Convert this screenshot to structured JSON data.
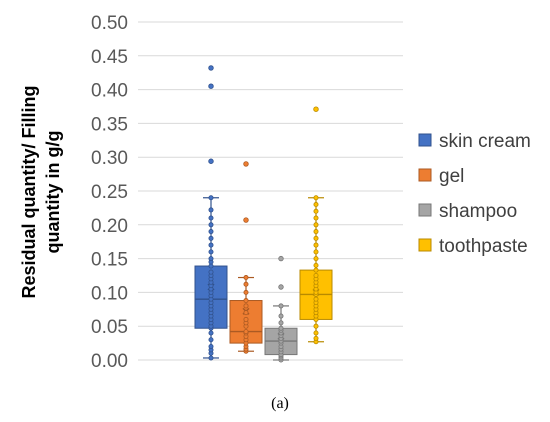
{
  "chart_data": {
    "type": "boxplot",
    "ylabel_lines": [
      "Residual quantity/ Filling",
      "quantity in g/g"
    ],
    "ylim": [
      0,
      0.5
    ],
    "yticks": [
      0.0,
      0.05,
      0.1,
      0.15,
      0.2,
      0.25,
      0.3,
      0.35,
      0.4,
      0.45,
      0.5
    ],
    "ytick_labels": [
      "0.00",
      "0.05",
      "0.10",
      "0.15",
      "0.20",
      "0.25",
      "0.30",
      "0.35",
      "0.40",
      "0.45",
      "0.50"
    ],
    "grid": true,
    "legend_position": "right",
    "caption": "(a)",
    "series": [
      {
        "name": "skin cream",
        "color": "#4472C4",
        "min": 0.003,
        "q1": 0.047,
        "median": 0.09,
        "q3": 0.139,
        "max": 0.24,
        "mean": 0.108,
        "points": [
          0.003,
          0.01,
          0.015,
          0.02,
          0.03,
          0.04,
          0.047,
          0.05,
          0.055,
          0.06,
          0.065,
          0.07,
          0.075,
          0.08,
          0.085,
          0.09,
          0.095,
          0.1,
          0.105,
          0.11,
          0.115,
          0.12,
          0.125,
          0.13,
          0.139,
          0.145,
          0.15,
          0.16,
          0.17,
          0.18,
          0.19,
          0.2,
          0.21,
          0.222,
          0.24
        ],
        "outliers": [
          0.294,
          0.405,
          0.432
        ]
      },
      {
        "name": "gel",
        "color": "#ED7D31",
        "min": 0.013,
        "q1": 0.025,
        "median": 0.042,
        "q3": 0.088,
        "max": 0.122,
        "mean": 0.072,
        "points": [
          0.013,
          0.016,
          0.02,
          0.025,
          0.03,
          0.035,
          0.04,
          0.042,
          0.05,
          0.055,
          0.06,
          0.07,
          0.08,
          0.088,
          0.1,
          0.112,
          0.122
        ],
        "outliers": [
          0.207,
          0.29
        ]
      },
      {
        "name": "shampoo",
        "color": "#A5A5A5",
        "min": 0.0,
        "q1": 0.008,
        "median": 0.028,
        "q3": 0.047,
        "max": 0.08,
        "mean": 0.035,
        "points": [
          0.0,
          0.003,
          0.006,
          0.008,
          0.012,
          0.016,
          0.02,
          0.025,
          0.028,
          0.032,
          0.036,
          0.04,
          0.044,
          0.047,
          0.055,
          0.065,
          0.08
        ],
        "outliers": [
          0.108,
          0.15
        ]
      },
      {
        "name": "toothpaste",
        "color": "#FFC000",
        "min": 0.027,
        "q1": 0.06,
        "median": 0.097,
        "q3": 0.133,
        "max": 0.24,
        "mean": 0.1,
        "points": [
          0.027,
          0.032,
          0.04,
          0.05,
          0.06,
          0.065,
          0.07,
          0.075,
          0.08,
          0.085,
          0.09,
          0.097,
          0.1,
          0.105,
          0.11,
          0.115,
          0.12,
          0.125,
          0.133,
          0.14,
          0.15,
          0.16,
          0.17,
          0.18,
          0.19,
          0.2,
          0.21,
          0.22,
          0.23,
          0.24
        ],
        "outliers": [
          0.371
        ]
      }
    ]
  }
}
